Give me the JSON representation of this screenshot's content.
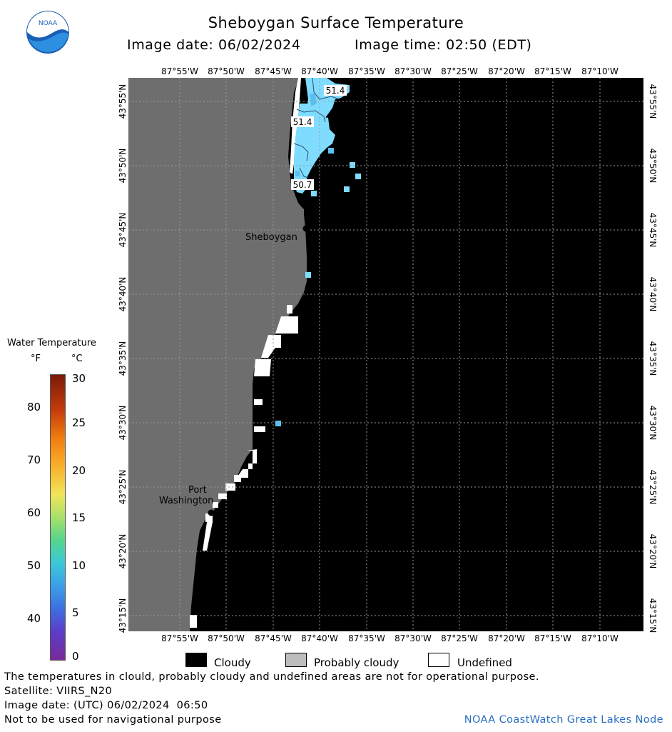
{
  "header": {
    "title": "Sheboygan Surface Temperature",
    "image_date": "Image date: 06/02/2024",
    "image_time": "Image time: 02:50 (EDT)"
  },
  "logo": {
    "text": "NOAA"
  },
  "map": {
    "lon_labels": [
      "87°55'W",
      "87°50'W",
      "87°45'W",
      "87°40'W",
      "87°35'W",
      "87°30'W",
      "87°25'W",
      "87°20'W",
      "87°15'W",
      "87°10'W"
    ],
    "lat_labels": [
      "43°55'N",
      "43°50'N",
      "43°45'N",
      "43°40'N",
      "43°35'N",
      "43°30'N",
      "43°25'N",
      "43°20'N",
      "43°15'N"
    ],
    "places": {
      "sheboygan": "Sheboygan",
      "port_line1": "Port",
      "port_line2": "Washington"
    },
    "temp_labels": [
      "51.4",
      "51.4",
      "50.7"
    ],
    "colors": {
      "land": "#6e6e6e",
      "cloudy": "#000000",
      "undefined": "#ffffff",
      "water_cool": "#7fdcff",
      "water_mid": "#5bbff0"
    }
  },
  "colorbar": {
    "title": "Water Temperature",
    "unit_f": "°F",
    "unit_c": "°C",
    "f_ticks": [
      "80",
      "70",
      "60",
      "50",
      "40"
    ],
    "c_ticks": [
      "30",
      "25",
      "20",
      "15",
      "10",
      "5",
      "0"
    ]
  },
  "legend": {
    "cloudy": "Cloudy",
    "probably_cloudy": "Probably cloudy",
    "undefined": "Undefined"
  },
  "footer": {
    "disclaimer": "The temperatures in clould, probably cloudy and undefined areas are not for operational purpose.",
    "satellite": "Satellite: VIIRS_N20",
    "utc_date": "Image date: (UTC) 06/02/2024  06:50",
    "nav_warning": "Not to be used for navigational purpose",
    "credit": "NOAA CoastWatch Great Lakes Node"
  }
}
